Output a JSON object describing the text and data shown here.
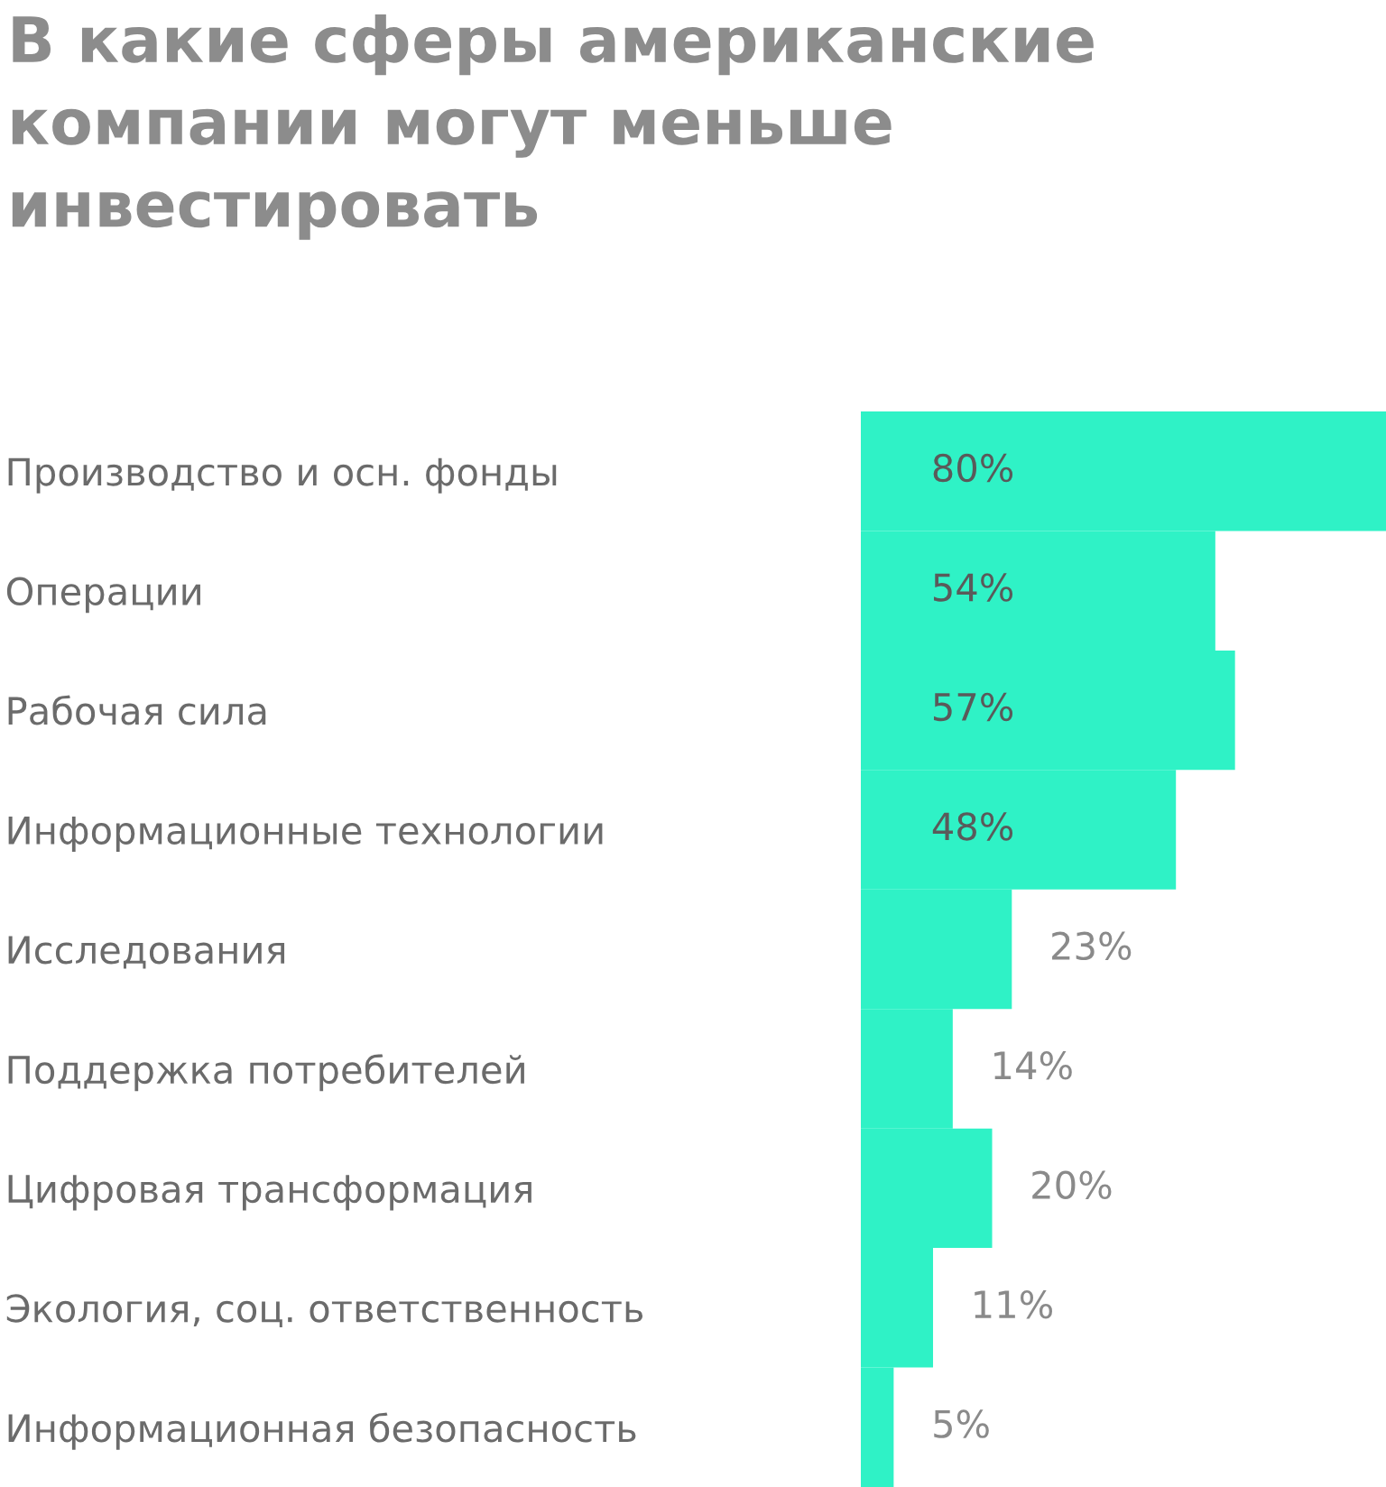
{
  "chart_data": {
    "type": "bar",
    "orientation": "horizontal",
    "title": "В какие сферы американские компании могут меньше инвестировать",
    "categories": [
      "Производство и осн. фонды",
      "Операции",
      "Рабочая сила",
      "Информационные технологии",
      "Исследования",
      "Поддержка потребителей",
      "Цифровая трансформация",
      "Экология, соц. ответственность",
      "Информационная безопасность"
    ],
    "values": [
      80,
      54,
      57,
      48,
      23,
      14,
      20,
      11,
      5
    ],
    "value_labels": [
      "80%",
      "54%",
      "57%",
      "48%",
      "23%",
      "14%",
      "20%",
      "11%",
      "5%"
    ],
    "color": "#2ff2c6",
    "grid": false,
    "legend": false
  }
}
